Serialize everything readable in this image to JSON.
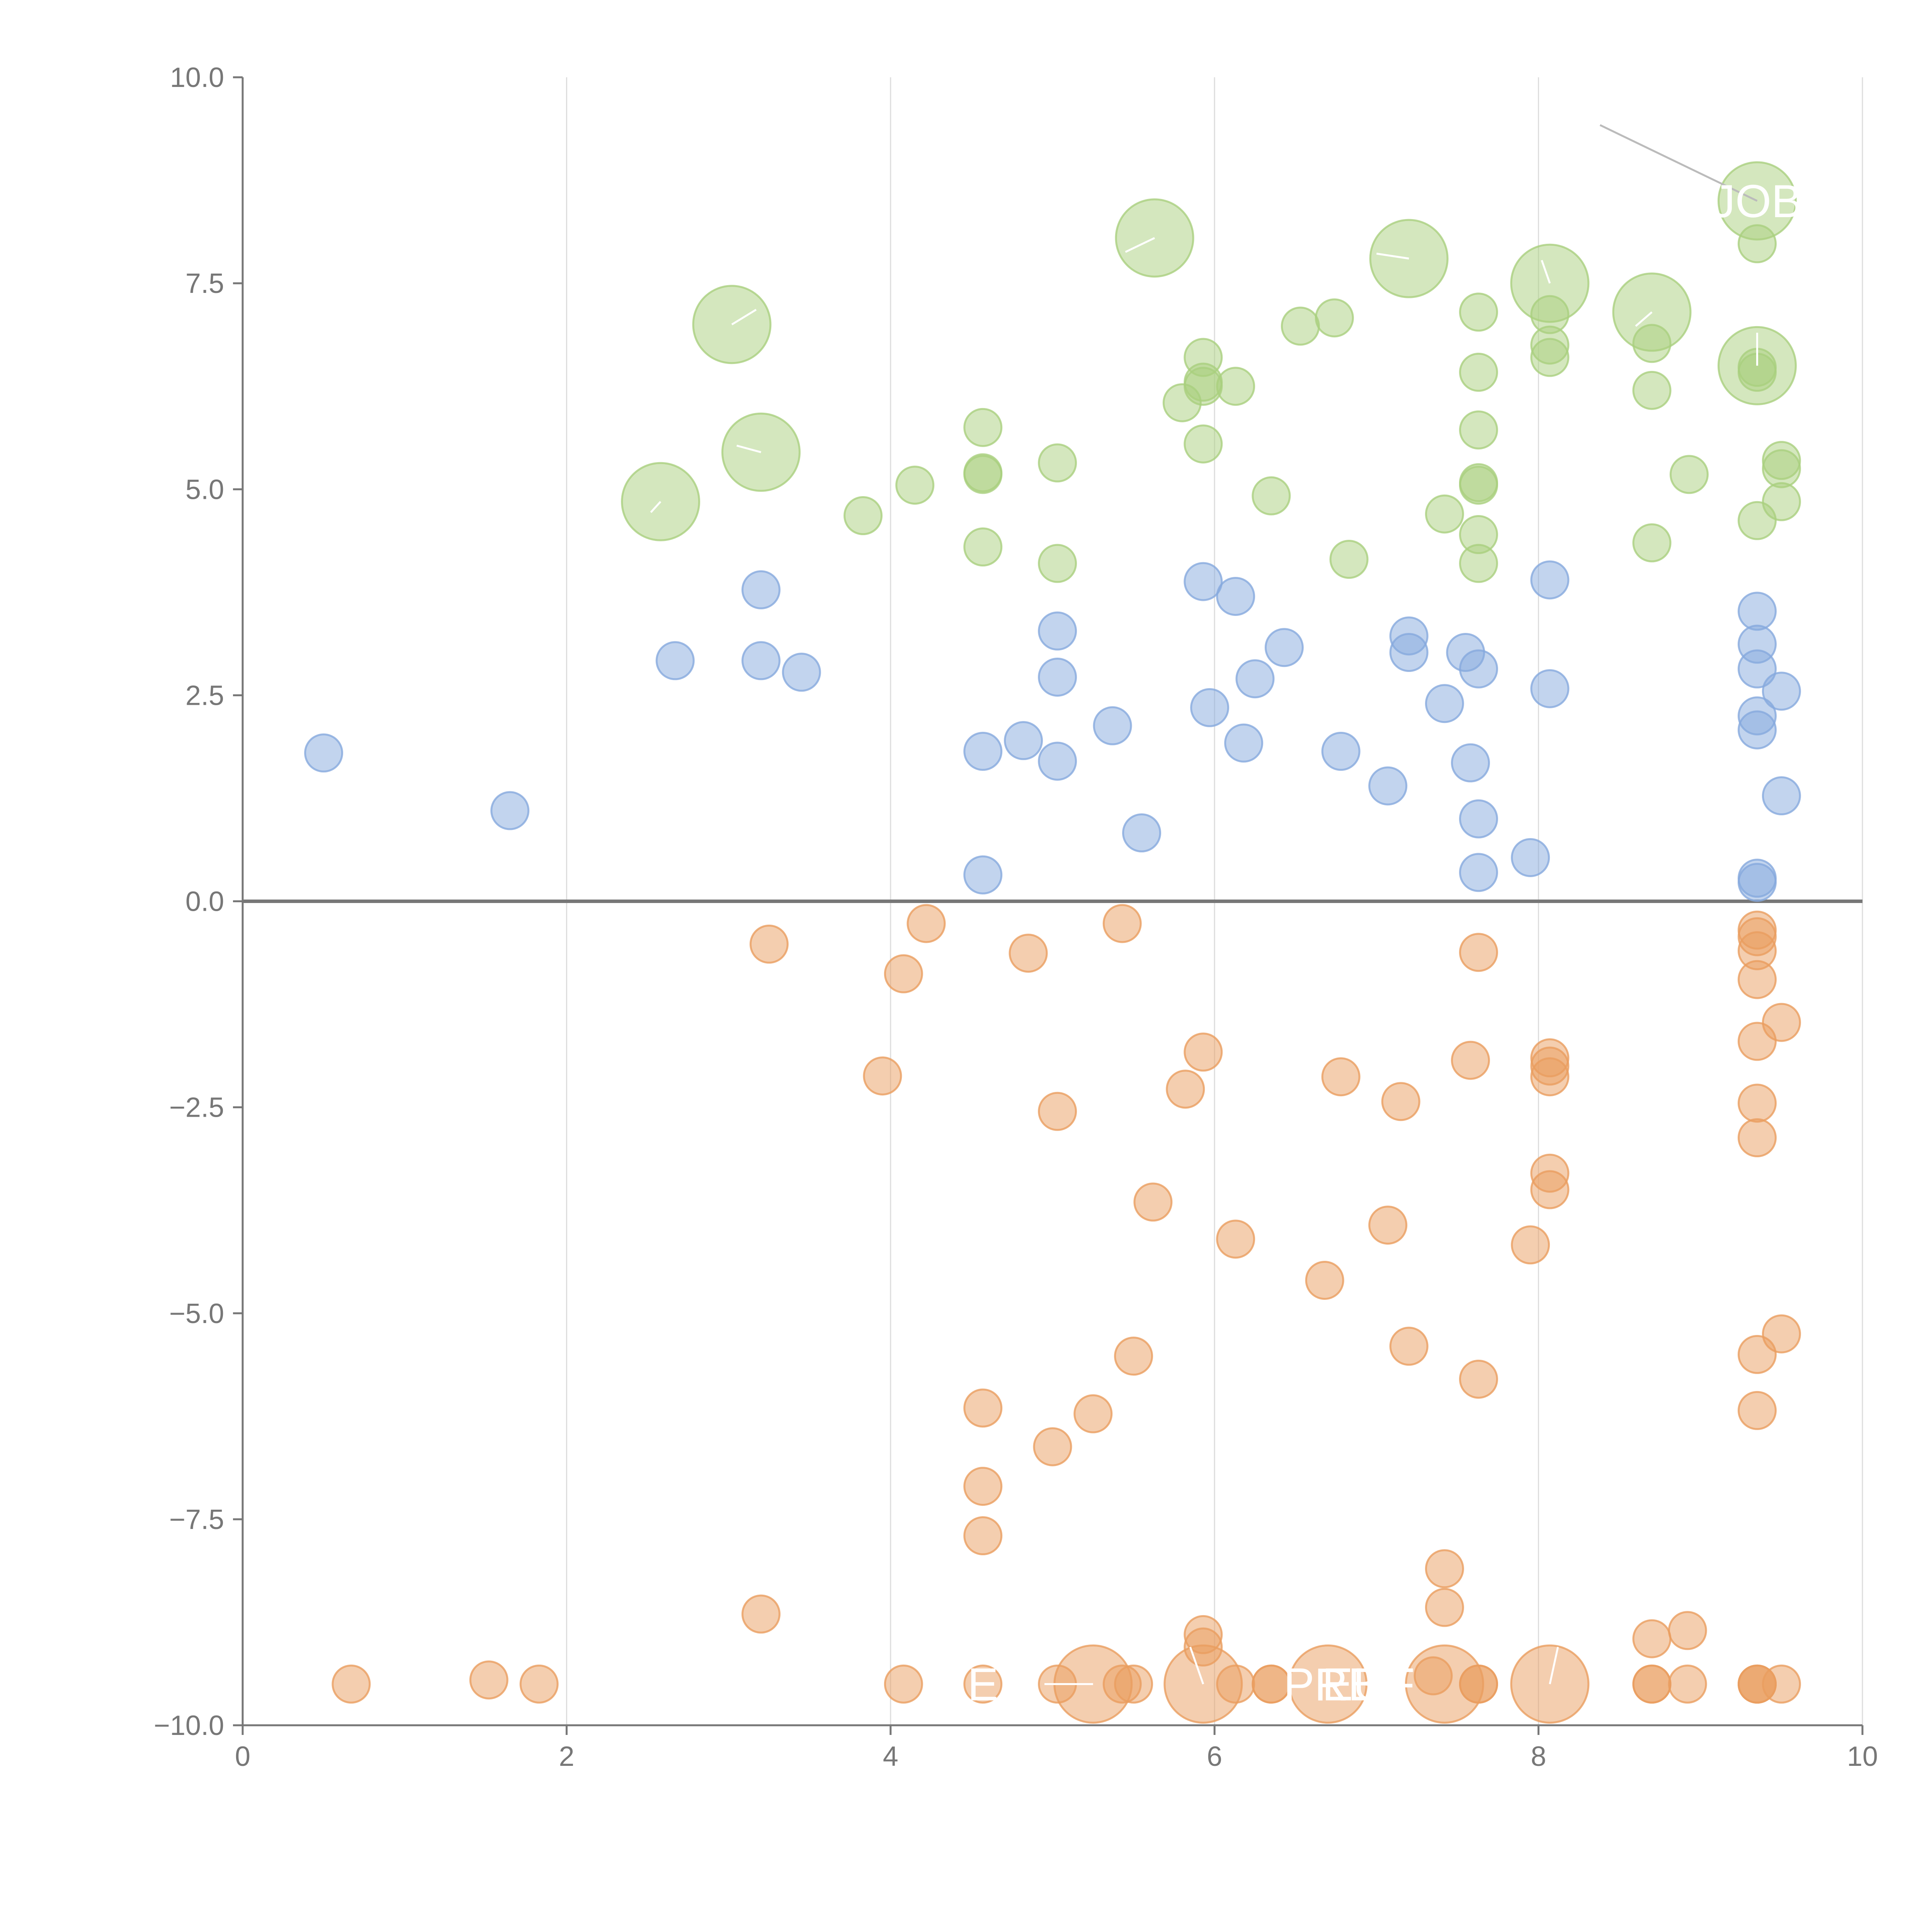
{
  "chart_data": {
    "type": "scatter",
    "title": "",
    "xlabel": "",
    "ylabel": "",
    "xlim": [
      0,
      10
    ],
    "ylim": [
      -10,
      10
    ],
    "x_ticks": [
      "0",
      "2",
      "4",
      "6",
      "8",
      "10"
    ],
    "y_ticks": [
      "−10.0",
      "−7.5",
      "−5.0",
      "−2.5",
      "0.0",
      "2.5",
      "5.0",
      "7.5",
      "10.0"
    ],
    "vertical_grid": true,
    "zero_line": true,
    "colors": {
      "top": "#a9cf7e",
      "middle": "#86a9dd",
      "bottom": "#ea9e5f",
      "axis": "#777777",
      "grid": "#dddddd",
      "zero_line": "#777777"
    },
    "series": [
      {
        "name": "top",
        "points": [
          [
            9.35,
            8.5,
            2
          ],
          [
            9.35,
            6.5,
            2
          ],
          [
            8.7,
            7.15,
            2
          ],
          [
            8.07,
            7.5,
            2
          ],
          [
            7.2,
            7.8,
            2
          ],
          [
            5.63,
            8.05,
            2
          ],
          [
            3.02,
            7.0,
            2
          ],
          [
            3.2,
            5.45,
            2
          ],
          [
            2.58,
            4.85,
            2
          ],
          [
            9.35,
            7.98,
            1
          ],
          [
            9.35,
            6.48,
            1
          ],
          [
            9.35,
            6.42,
            1
          ],
          [
            9.35,
            4.62,
            1
          ],
          [
            9.5,
            5.35,
            1
          ],
          [
            9.5,
            5.25,
            1
          ],
          [
            9.5,
            4.85,
            1
          ],
          [
            8.93,
            5.18,
            1
          ],
          [
            8.7,
            6.77,
            1
          ],
          [
            8.7,
            6.2,
            1
          ],
          [
            8.7,
            4.35,
            1
          ],
          [
            8.07,
            7.12,
            1
          ],
          [
            8.07,
            6.75,
            1
          ],
          [
            8.07,
            6.6,
            1
          ],
          [
            7.63,
            7.15,
            1
          ],
          [
            7.63,
            6.42,
            1
          ],
          [
            7.63,
            5.72,
            1
          ],
          [
            7.63,
            5.08,
            1
          ],
          [
            7.63,
            5.05,
            1
          ],
          [
            7.63,
            4.45,
            1
          ],
          [
            7.63,
            4.1,
            1
          ],
          [
            7.42,
            4.7,
            1
          ],
          [
            6.83,
            4.15,
            1
          ],
          [
            6.74,
            7.08,
            1
          ],
          [
            6.53,
            6.98,
            1
          ],
          [
            6.35,
            4.92,
            1
          ],
          [
            6.13,
            6.25,
            1
          ],
          [
            5.93,
            6.6,
            1
          ],
          [
            5.93,
            6.3,
            1
          ],
          [
            5.93,
            6.25,
            1
          ],
          [
            5.93,
            5.55,
            1
          ],
          [
            5.8,
            6.05,
            1
          ],
          [
            5.03,
            5.32,
            1
          ],
          [
            5.03,
            4.1,
            1
          ],
          [
            4.57,
            5.75,
            1
          ],
          [
            4.57,
            5.2,
            1
          ],
          [
            4.57,
            5.18,
            1
          ],
          [
            4.57,
            4.3,
            1
          ],
          [
            4.15,
            5.05,
            1
          ],
          [
            3.83,
            4.68,
            1
          ]
        ]
      },
      {
        "name": "middle",
        "points": [
          [
            0.5,
            1.8,
            1
          ],
          [
            1.65,
            1.1,
            1
          ],
          [
            2.67,
            2.92,
            1
          ],
          [
            3.2,
            3.78,
            1
          ],
          [
            3.2,
            2.92,
            1
          ],
          [
            3.45,
            2.78,
            1
          ],
          [
            4.57,
            1.82,
            1
          ],
          [
            4.57,
            0.32,
            1
          ],
          [
            4.82,
            1.95,
            1
          ],
          [
            5.03,
            3.28,
            1
          ],
          [
            5.03,
            2.72,
            1
          ],
          [
            5.03,
            1.7,
            1
          ],
          [
            5.37,
            2.13,
            1
          ],
          [
            5.55,
            0.83,
            1
          ],
          [
            5.93,
            3.88,
            1
          ],
          [
            5.97,
            2.35,
            1
          ],
          [
            6.13,
            3.7,
            1
          ],
          [
            6.18,
            1.92,
            1
          ],
          [
            6.25,
            2.7,
            1
          ],
          [
            6.43,
            3.08,
            1
          ],
          [
            6.78,
            1.82,
            1
          ],
          [
            7.07,
            1.4,
            1
          ],
          [
            7.2,
            3.22,
            1
          ],
          [
            7.2,
            3.02,
            1
          ],
          [
            7.42,
            2.4,
            1
          ],
          [
            7.55,
            3.02,
            1
          ],
          [
            7.58,
            1.68,
            1
          ],
          [
            7.63,
            2.82,
            1
          ],
          [
            7.63,
            1.0,
            1
          ],
          [
            7.63,
            0.35,
            1
          ],
          [
            7.95,
            0.53,
            1
          ],
          [
            8.07,
            3.9,
            1
          ],
          [
            8.07,
            2.58,
            1
          ],
          [
            9.35,
            3.52,
            1
          ],
          [
            9.35,
            3.12,
            1
          ],
          [
            9.35,
            2.82,
            1
          ],
          [
            9.35,
            2.25,
            1
          ],
          [
            9.35,
            2.08,
            1
          ],
          [
            9.35,
            0.28,
            1
          ],
          [
            9.35,
            0.23,
            1
          ],
          [
            9.5,
            2.55,
            1
          ],
          [
            9.5,
            1.28,
            1
          ]
        ]
      },
      {
        "name": "bottom",
        "points": [
          [
            5.25,
            -9.5,
            2
          ],
          [
            5.93,
            -9.5,
            2
          ],
          [
            6.7,
            -9.5,
            2
          ],
          [
            7.42,
            -9.5,
            2
          ],
          [
            8.07,
            -9.5,
            2
          ],
          [
            0.67,
            -9.5,
            1
          ],
          [
            1.52,
            -9.45,
            1
          ],
          [
            1.83,
            -9.5,
            1
          ],
          [
            3.2,
            -8.65,
            1
          ],
          [
            3.25,
            -0.52,
            1
          ],
          [
            3.95,
            -2.12,
            1
          ],
          [
            4.08,
            -0.88,
            1
          ],
          [
            4.08,
            -9.5,
            1
          ],
          [
            4.22,
            -0.27,
            1
          ],
          [
            4.57,
            -6.15,
            1
          ],
          [
            4.57,
            -7.1,
            1
          ],
          [
            4.57,
            -7.7,
            1
          ],
          [
            4.57,
            -9.5,
            1
          ],
          [
            4.85,
            -0.63,
            1
          ],
          [
            5.0,
            -6.62,
            1
          ],
          [
            5.03,
            -2.55,
            1
          ],
          [
            5.03,
            -9.5,
            1
          ],
          [
            5.25,
            -6.22,
            1
          ],
          [
            5.43,
            -0.27,
            1
          ],
          [
            5.43,
            -9.5,
            1
          ],
          [
            5.5,
            -5.52,
            1
          ],
          [
            5.5,
            -9.5,
            1
          ],
          [
            5.62,
            -3.65,
            1
          ],
          [
            5.82,
            -2.28,
            1
          ],
          [
            5.93,
            -1.83,
            1
          ],
          [
            5.93,
            -8.9,
            1
          ],
          [
            5.93,
            -9.05,
            1
          ],
          [
            6.13,
            -4.1,
            1
          ],
          [
            6.13,
            -9.5,
            1
          ],
          [
            6.35,
            -9.5,
            1
          ],
          [
            6.35,
            -9.5,
            1
          ],
          [
            6.68,
            -4.6,
            1
          ],
          [
            6.78,
            -2.13,
            1
          ],
          [
            7.07,
            -3.93,
            1
          ],
          [
            7.15,
            -2.43,
            1
          ],
          [
            7.2,
            -5.4,
            1
          ],
          [
            7.35,
            -9.4,
            1
          ],
          [
            7.42,
            -8.1,
            1
          ],
          [
            7.42,
            -8.57,
            1
          ],
          [
            7.58,
            -1.93,
            1
          ],
          [
            7.63,
            -0.62,
            1
          ],
          [
            7.63,
            -5.8,
            1
          ],
          [
            7.63,
            -9.5,
            1
          ],
          [
            7.63,
            -9.5,
            1
          ],
          [
            7.95,
            -4.17,
            1
          ],
          [
            8.07,
            -1.9,
            1
          ],
          [
            8.07,
            -2.0,
            1
          ],
          [
            8.07,
            -2.13,
            1
          ],
          [
            8.07,
            -3.3,
            1
          ],
          [
            8.07,
            -3.5,
            1
          ],
          [
            8.7,
            -8.95,
            1
          ],
          [
            8.7,
            -9.5,
            1
          ],
          [
            8.7,
            -9.5,
            1
          ],
          [
            8.92,
            -8.85,
            1
          ],
          [
            8.92,
            -9.5,
            1
          ],
          [
            9.35,
            -0.35,
            1
          ],
          [
            9.35,
            -0.43,
            1
          ],
          [
            9.35,
            -0.6,
            1
          ],
          [
            9.35,
            -0.95,
            1
          ],
          [
            9.35,
            -1.7,
            1
          ],
          [
            9.35,
            -2.45,
            1
          ],
          [
            9.35,
            -2.87,
            1
          ],
          [
            9.35,
            -5.5,
            1
          ],
          [
            9.35,
            -6.18,
            1
          ],
          [
            9.35,
            -9.5,
            1
          ],
          [
            9.35,
            -9.5,
            1
          ],
          [
            9.35,
            -9.5,
            1
          ],
          [
            9.5,
            -1.47,
            1
          ],
          [
            9.5,
            -5.25,
            1
          ],
          [
            9.5,
            -9.5,
            1
          ]
        ]
      }
    ],
    "annotations": [
      {
        "text": "JOB",
        "x": 9.35,
        "y": 8.5
      },
      {
        "text": "E",
        "x": 4.57,
        "y": -9.5
      },
      {
        "text": "PRB",
        "x": 6.72,
        "y": -9.5
      },
      {
        "text": "EUF",
        "x": 6.95,
        "y": -9.5
      }
    ],
    "leader_lines": [
      [
        9.35,
        8.5,
        8.38,
        9.42,
        "#bbbbbb"
      ],
      [
        9.35,
        6.5,
        9.35,
        6.9,
        "#ffffff"
      ],
      [
        8.7,
        7.15,
        8.6,
        6.98,
        "#ffffff"
      ],
      [
        8.07,
        7.5,
        8.02,
        7.78,
        "#ffffff"
      ],
      [
        7.2,
        7.8,
        7.0,
        7.86,
        "#ffffff"
      ],
      [
        5.63,
        8.05,
        5.45,
        7.88,
        "#ffffff"
      ],
      [
        3.02,
        7.0,
        3.17,
        7.18,
        "#ffffff"
      ],
      [
        3.2,
        5.45,
        3.05,
        5.53,
        "#ffffff"
      ],
      [
        2.58,
        4.85,
        2.52,
        4.72,
        "#ffffff"
      ],
      [
        5.25,
        -9.5,
        4.95,
        -9.5,
        "#ffffff"
      ],
      [
        5.93,
        -9.5,
        5.85,
        -9.05,
        "#ffffff"
      ],
      [
        8.07,
        -9.5,
        8.12,
        -9.05,
        "#ffffff"
      ]
    ]
  }
}
